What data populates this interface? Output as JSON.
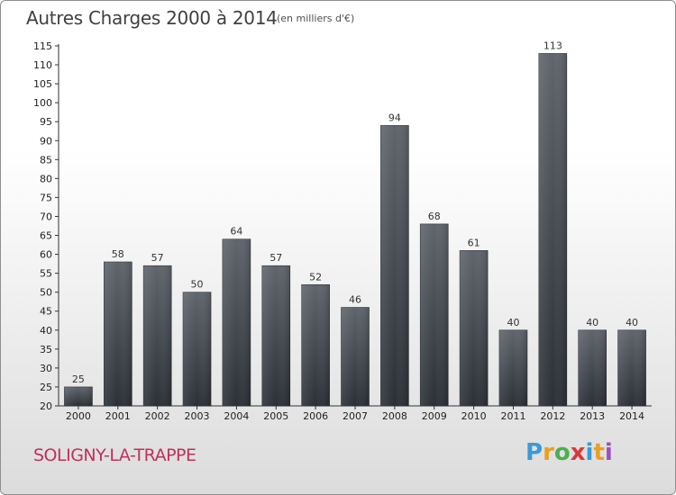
{
  "header": {
    "title": "Autres Charges 2000 à 2014",
    "subtitle": "(en milliers d'€)"
  },
  "footer": {
    "town": "SOLIGNY-LA-TRAPPE",
    "brand_letters": [
      "P",
      "r",
      "o",
      "x",
      "i",
      "t",
      "i"
    ],
    "brand_colors": [
      "#3a9ad9",
      "#e8a020",
      "#4caf50",
      "#d93a3a",
      "#3a9ad9",
      "#e8a020",
      "#9c4fc0"
    ]
  },
  "chart_data": {
    "type": "bar",
    "title": "Autres Charges 2000 à 2014",
    "subtitle": "(en milliers d'€)",
    "xlabel": "",
    "ylabel": "",
    "categories": [
      "2000",
      "2001",
      "2002",
      "2003",
      "2004",
      "2005",
      "2006",
      "2007",
      "2008",
      "2009",
      "2010",
      "2011",
      "2012",
      "2013",
      "2014"
    ],
    "values": [
      25,
      58,
      57,
      50,
      64,
      57,
      52,
      46,
      94,
      68,
      61,
      40,
      113,
      40,
      40
    ],
    "ylim": [
      20,
      115
    ],
    "yticks": [
      20,
      25,
      30,
      35,
      40,
      45,
      50,
      55,
      60,
      65,
      70,
      75,
      80,
      85,
      90,
      95,
      100,
      105,
      110,
      115
    ],
    "grid": false,
    "data_labels": true,
    "bar_color": "#454b52"
  }
}
